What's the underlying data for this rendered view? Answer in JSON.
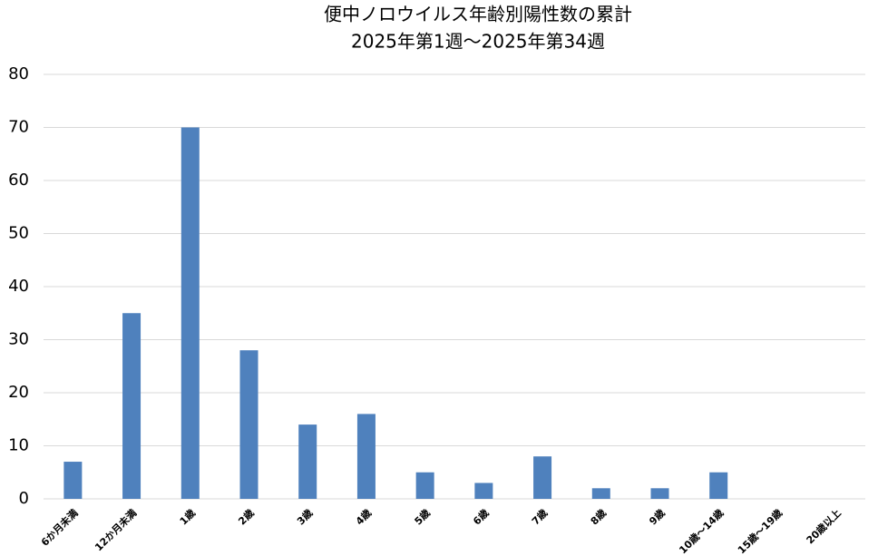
{
  "chart_data": {
    "type": "bar",
    "title": "便中ノロウイルス年齢別陽性数の累計",
    "subtitle": "2025年第1週～2025年第34週",
    "categories": [
      "6か月未満",
      "12か月未満",
      "1歳",
      "2歳",
      "3歳",
      "4歳",
      "5歳",
      "6歳",
      "7歳",
      "8歳",
      "9歳",
      "10歳～14歳",
      "15歳～19歳",
      "20歳以上"
    ],
    "values": [
      7,
      35,
      70,
      28,
      14,
      16,
      5,
      3,
      8,
      2,
      2,
      5,
      0,
      0
    ],
    "color": "#4f81bd",
    "ylim": [
      0,
      80
    ],
    "yticks": [
      0,
      10,
      20,
      30,
      40,
      50,
      60,
      70,
      80
    ],
    "grid": true
  }
}
